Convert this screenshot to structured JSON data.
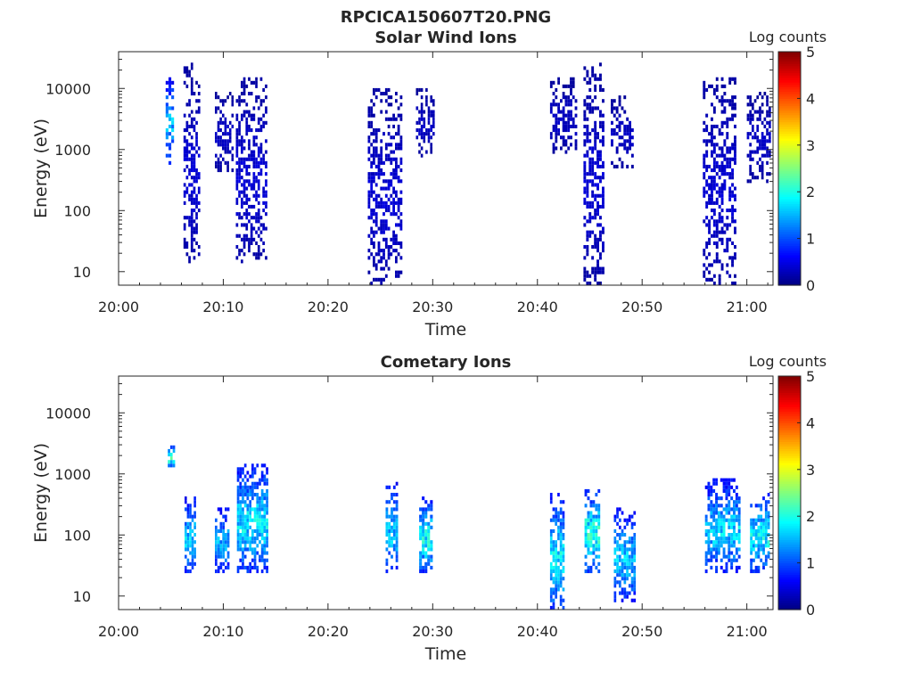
{
  "figure_title": "RPCICA150607T20.PNG",
  "chart_data": [
    {
      "type": "heatmap",
      "title": "Solar Wind Ions",
      "xlabel": "Time",
      "ylabel": "Energy (eV)",
      "x_ticks": [
        "20:00",
        "20:10",
        "20:20",
        "20:30",
        "20:40",
        "20:50",
        "21:00"
      ],
      "x_range_minutes": [
        0,
        62.5
      ],
      "y_scale": "log",
      "y_ticks": [
        10,
        100,
        1000,
        10000
      ],
      "y_range": [
        6,
        40000
      ],
      "colorbar": {
        "label": "Log counts",
        "ticks": [
          0,
          1,
          2,
          3,
          4,
          5
        ],
        "range": [
          0,
          5
        ],
        "colormap": "jet"
      },
      "bursts": [
        {
          "t_start": 4.5,
          "t_end": 5.3,
          "e_low": 600,
          "e_high": 16000,
          "peak_log_counts": 1.8
        },
        {
          "t_start": 6.2,
          "t_end": 7.8,
          "e_low": 13,
          "e_high": 25000,
          "peak_log_counts": 0.5
        },
        {
          "t_start": 9.2,
          "t_end": 11.0,
          "e_low": 400,
          "e_high": 9000,
          "peak_log_counts": 0.4
        },
        {
          "t_start": 11.2,
          "t_end": 14.2,
          "e_low": 13,
          "e_high": 16000,
          "peak_log_counts": 0.5
        },
        {
          "t_start": 23.8,
          "t_end": 27.1,
          "e_low": 6,
          "e_high": 10000,
          "peak_log_counts": 0.5
        },
        {
          "t_start": 28.4,
          "t_end": 30.2,
          "e_low": 700,
          "e_high": 10000,
          "peak_log_counts": 0.4
        },
        {
          "t_start": 41.2,
          "t_end": 43.8,
          "e_low": 800,
          "e_high": 16000,
          "peak_log_counts": 0.4
        },
        {
          "t_start": 44.4,
          "t_end": 46.4,
          "e_low": 6,
          "e_high": 25000,
          "peak_log_counts": 0.5
        },
        {
          "t_start": 47.0,
          "t_end": 49.2,
          "e_low": 500,
          "e_high": 8000,
          "peak_log_counts": 0.4
        },
        {
          "t_start": 55.8,
          "t_end": 59.0,
          "e_low": 6,
          "e_high": 16000,
          "peak_log_counts": 0.5
        },
        {
          "t_start": 60.0,
          "t_end": 62.3,
          "e_low": 300,
          "e_high": 9000,
          "peak_log_counts": 0.4
        }
      ]
    },
    {
      "type": "heatmap",
      "title": "Cometary Ions",
      "xlabel": "Time",
      "ylabel": "Energy (eV)",
      "x_ticks": [
        "20:00",
        "20:10",
        "20:20",
        "20:30",
        "20:40",
        "20:50",
        "21:00"
      ],
      "x_range_minutes": [
        0,
        62.5
      ],
      "y_scale": "log",
      "y_ticks": [
        10,
        100,
        1000,
        10000
      ],
      "y_range": [
        6,
        40000
      ],
      "colorbar": {
        "label": "Log counts",
        "ticks": [
          0,
          1,
          2,
          3,
          4,
          5
        ],
        "range": [
          0,
          5
        ],
        "colormap": "jet"
      },
      "bursts": [
        {
          "t_start": 4.7,
          "t_end": 5.4,
          "e_low": 1200,
          "e_high": 3000,
          "peak_log_counts": 2.4
        },
        {
          "t_start": 6.3,
          "t_end": 7.4,
          "e_low": 25,
          "e_high": 400,
          "peak_log_counts": 2.0
        },
        {
          "t_start": 9.2,
          "t_end": 10.6,
          "e_low": 25,
          "e_high": 300,
          "peak_log_counts": 1.8
        },
        {
          "t_start": 11.3,
          "t_end": 14.3,
          "e_low": 25,
          "e_high": 1500,
          "peak_log_counts": 2.1
        },
        {
          "t_start": 25.5,
          "t_end": 26.7,
          "e_low": 25,
          "e_high": 700,
          "peak_log_counts": 2.0
        },
        {
          "t_start": 28.7,
          "t_end": 30.0,
          "e_low": 25,
          "e_high": 400,
          "peak_log_counts": 2.3
        },
        {
          "t_start": 41.2,
          "t_end": 42.6,
          "e_low": 6,
          "e_high": 500,
          "peak_log_counts": 2.2
        },
        {
          "t_start": 44.5,
          "t_end": 46.0,
          "e_low": 25,
          "e_high": 600,
          "peak_log_counts": 2.4
        },
        {
          "t_start": 47.3,
          "t_end": 49.4,
          "e_low": 8,
          "e_high": 300,
          "peak_log_counts": 1.9
        },
        {
          "t_start": 56.0,
          "t_end": 59.4,
          "e_low": 25,
          "e_high": 800,
          "peak_log_counts": 2.0
        },
        {
          "t_start": 60.3,
          "t_end": 62.2,
          "e_low": 25,
          "e_high": 500,
          "peak_log_counts": 2.2
        }
      ]
    }
  ]
}
